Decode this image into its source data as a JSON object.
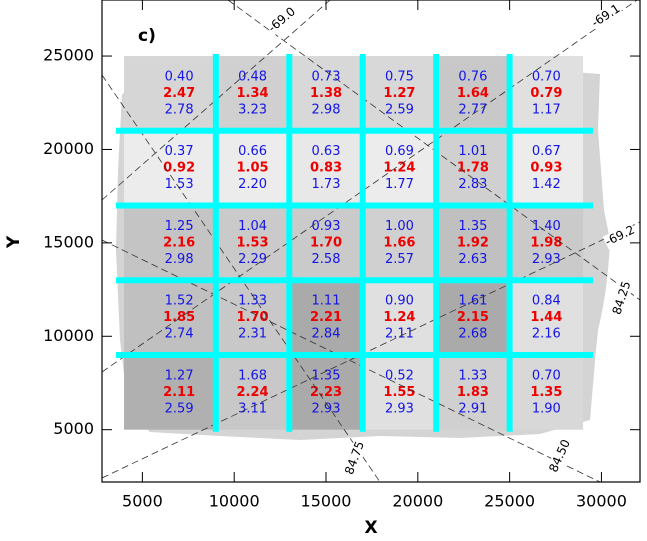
{
  "chart_data": {
    "type": "grid",
    "title": "c)",
    "xlabel": "X",
    "ylabel": "Y",
    "xlim": [
      2800,
      32100
    ],
    "ylim": [
      2200,
      28000
    ],
    "xticks": [
      5000,
      10000,
      15000,
      20000,
      25000,
      30000
    ],
    "yticks": [
      5000,
      10000,
      15000,
      20000,
      25000
    ],
    "cell_bounds_x": [
      4000,
      9000,
      13000,
      17000,
      21000,
      25000,
      29000
    ],
    "cell_bounds_y": [
      25000,
      21000,
      17000,
      13000,
      9000,
      5000
    ],
    "divider_color": "#00ffff",
    "value_colors": [
      "#1414e6",
      "#ee0000",
      "#1414e6"
    ],
    "cell_colors": [
      [
        "#d6d6d6",
        "#d0d0d0",
        "#d8d8d8",
        "#d8d8d8",
        "#c8c8c8",
        "#e0e0e0"
      ],
      [
        "#ececec",
        "#ececec",
        "#e8e8e8",
        "#ececec",
        "#d0d0d0",
        "#ececec"
      ],
      [
        "#c4c4c4",
        "#cacaca",
        "#cacaca",
        "#d0d0d0",
        "#c0c0c0",
        "#cacaca"
      ],
      [
        "#c0c0c0",
        "#c8c8c8",
        "#aaaaaa",
        "#e0e0e0",
        "#aaaaaa",
        "#e0e0e0"
      ],
      [
        "#b0b0b0",
        "#c8c8c8",
        "#aaaaaa",
        "#e0e0e0",
        "#d0d0d0",
        "#d8d8d8"
      ]
    ],
    "cells": [
      [
        [
          "0.40",
          "2.47",
          "2.78"
        ],
        [
          "0.48",
          "1.34",
          "3.23"
        ],
        [
          "0.73",
          "1.38",
          "2.98"
        ],
        [
          "0.75",
          "1.27",
          "2.59"
        ],
        [
          "0.76",
          "1.64",
          "2.77"
        ],
        [
          "0.70",
          "0.79",
          "1.17"
        ]
      ],
      [
        [
          "0.37",
          "0.92",
          "1.53"
        ],
        [
          "0.66",
          "1.05",
          "2.20"
        ],
        [
          "0.63",
          "0.83",
          "1.73"
        ],
        [
          "0.69",
          "1.24",
          "1.77"
        ],
        [
          "1.01",
          "1.78",
          "2.83"
        ],
        [
          "0.67",
          "0.93",
          "1.42"
        ]
      ],
      [
        [
          "1.25",
          "2.16",
          "2.98"
        ],
        [
          "1.04",
          "1.53",
          "2.29"
        ],
        [
          "0.93",
          "1.70",
          "2.58"
        ],
        [
          "1.00",
          "1.66",
          "2.57"
        ],
        [
          "1.35",
          "1.92",
          "2.63"
        ],
        [
          "1.40",
          "1.98",
          "2.93"
        ]
      ],
      [
        [
          "1.52",
          "1.85",
          "2.74"
        ],
        [
          "1.33",
          "1.70",
          "2.31"
        ],
        [
          "1.11",
          "2.21",
          "2.84"
        ],
        [
          "0.90",
          "1.24",
          "2.11"
        ],
        [
          "1.61",
          "2.15",
          "2.68"
        ],
        [
          "0.84",
          "1.44",
          "2.16"
        ]
      ],
      [
        [
          "1.27",
          "2.11",
          "2.59"
        ],
        [
          "1.68",
          "2.24",
          "3.11"
        ],
        [
          "1.35",
          "2.23",
          "2.93"
        ],
        [
          "0.52",
          "1.55",
          "2.93"
        ],
        [
          "1.33",
          "1.83",
          "2.91"
        ],
        [
          "0.70",
          "1.35",
          "1.90"
        ]
      ]
    ],
    "contour_labels": [
      "-69.0",
      "-69.1",
      "-69.2",
      "84.25",
      "84.50",
      "84.75"
    ]
  }
}
